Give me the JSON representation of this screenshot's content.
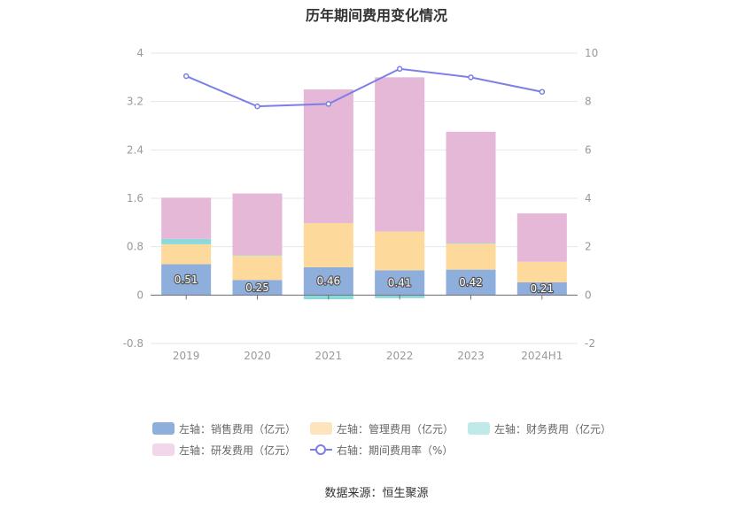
{
  "chart_data": {
    "type": "bar",
    "title": "历年期间费用变化情况",
    "categories": [
      "2019",
      "2020",
      "2021",
      "2022",
      "2023",
      "2024H1"
    ],
    "stacked": true,
    "left_axis": {
      "min": -0.8,
      "max": 4,
      "ticks": [
        "-0.8",
        "0",
        "0.8",
        "1.6",
        "2.4",
        "3.2",
        "4"
      ]
    },
    "right_axis": {
      "min": -2,
      "max": 10,
      "ticks": [
        "-2",
        "0",
        "2",
        "4",
        "6",
        "8",
        "10"
      ]
    },
    "grid": true,
    "legend_position": "bottom",
    "series": [
      {
        "name": "左轴：销售费用（亿元）",
        "axis": "left",
        "kind": "bar",
        "color": "#8eaedc",
        "values": [
          0.51,
          0.25,
          0.46,
          0.41,
          0.42,
          0.21
        ],
        "labels": [
          "0.51",
          "0.25",
          "0.46",
          "0.41",
          "0.42",
          "0.21"
        ]
      },
      {
        "name": "左轴：管理费用（亿元）",
        "axis": "left",
        "kind": "bar",
        "color": "#fdd99b",
        "values": [
          0.33,
          0.4,
          0.73,
          0.64,
          0.43,
          0.34
        ]
      },
      {
        "name": "左轴：财务费用（亿元）",
        "axis": "left",
        "kind": "bar",
        "color": "#8dd9d9",
        "values": [
          0.09,
          0.01,
          -0.07,
          -0.05,
          0.01,
          0.0
        ]
      },
      {
        "name": "左轴：研发费用（亿元）",
        "axis": "left",
        "kind": "bar",
        "color": "#e6b8d8",
        "values": [
          0.68,
          1.02,
          2.21,
          2.55,
          1.84,
          0.8
        ]
      },
      {
        "name": "右轴：期间费用率（%）",
        "axis": "right",
        "kind": "line",
        "color": "#7b7fe8",
        "values": [
          9.05,
          7.8,
          7.9,
          9.35,
          9.0,
          8.4
        ]
      }
    ],
    "legend_swatch_colors": [
      "#8eaedc",
      "#fde4bd",
      "#c0eaea",
      "#f2d7ea",
      "#7b7fe8"
    ]
  },
  "source": "数据来源：恒生聚源"
}
